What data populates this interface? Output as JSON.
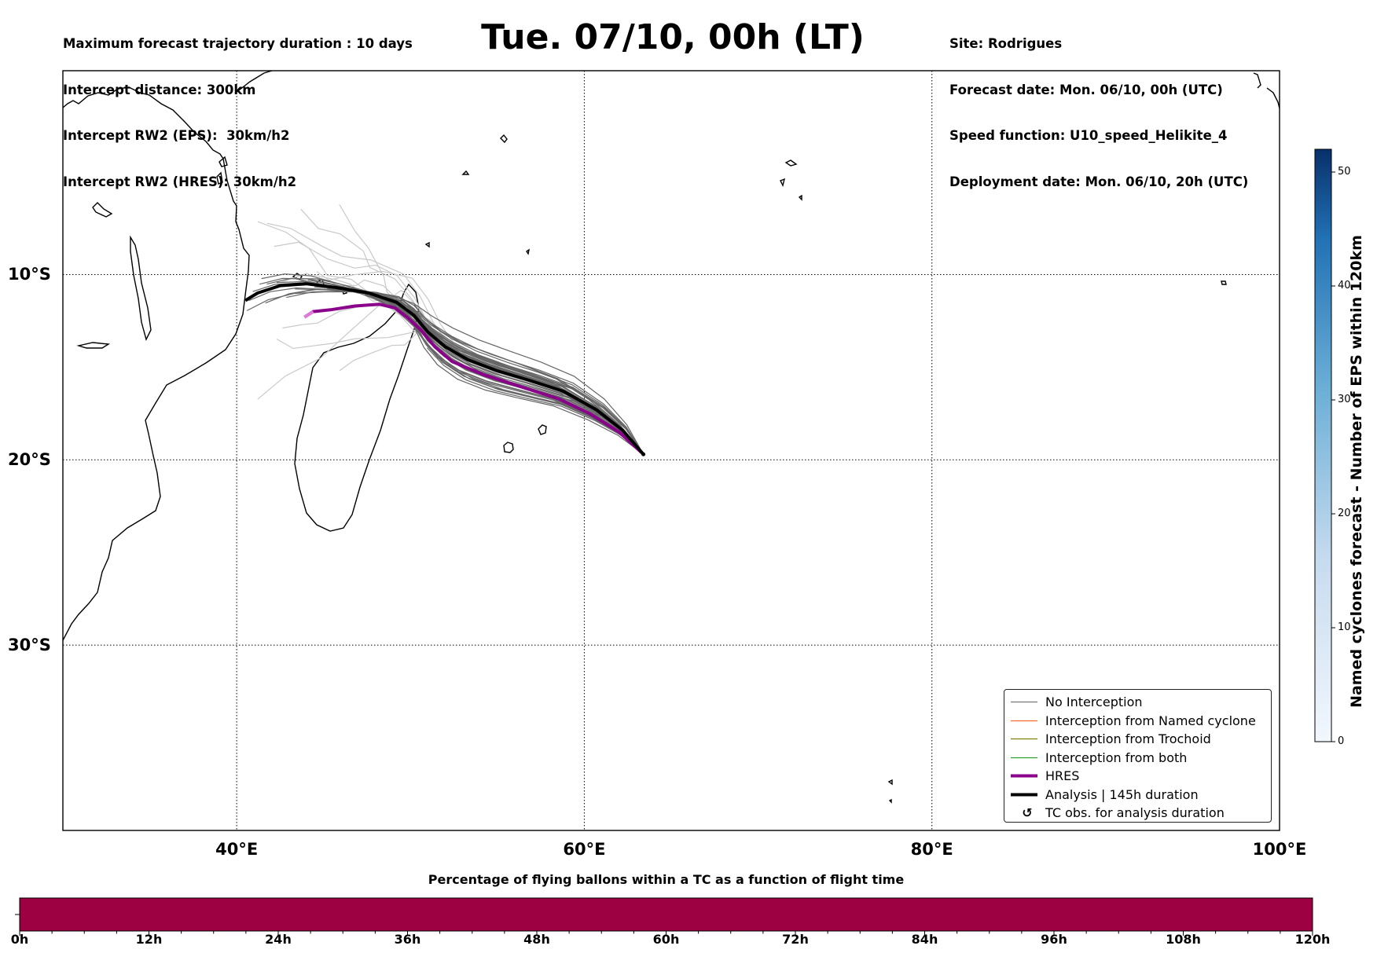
{
  "header": {
    "title": "Tue. 07/10, 00h (LT)",
    "left_lines": [
      "Maximum forecast trajectory duration : 10 days",
      "Intercept distance: 300km",
      "Intercept RW2 (EPS):  30km/h2",
      "Intercept RW2 (HRES): 30km/h2"
    ],
    "right_lines": [
      "Site: Rodrigues",
      "Forecast date: Mon. 06/10, 00h (UTC)",
      "Speed function: U10_speed_Helikite_4",
      "Deployment date: Mon. 06/10, 20h (UTC)"
    ]
  },
  "map": {
    "lon_range": [
      30,
      100
    ],
    "lat_range": [
      -40,
      1
    ],
    "lat_labels": [
      {
        "lat": -10,
        "text": "10°S"
      },
      {
        "lat": -20,
        "text": "20°S"
      },
      {
        "lat": -30,
        "text": "30°S"
      }
    ],
    "lon_labels": [
      {
        "lon": 40,
        "text": "40°E"
      },
      {
        "lon": 60,
        "text": "60°E"
      },
      {
        "lon": 80,
        "text": "80°E"
      },
      {
        "lon": 100,
        "text": "100°E"
      }
    ],
    "origin": {
      "lon": 63.4,
      "lat": -19.7
    },
    "colors": {
      "no_interception": "#666666",
      "named_cyclone": "#ff6a2a",
      "trochoid": "#808000",
      "both": "#2ca02c",
      "hres": "#8b008b",
      "analysis": "#000000"
    }
  },
  "legend": {
    "items": [
      {
        "label": "No Interception",
        "kind": "line",
        "color": "#777777",
        "width": 1.2
      },
      {
        "label": "Interception from Named cyclone",
        "kind": "line",
        "color": "#ff6a2a",
        "width": 1.2
      },
      {
        "label": "Interception from Trochoid",
        "kind": "line",
        "color": "#808000",
        "width": 1.2
      },
      {
        "label": "Interception from both",
        "kind": "line",
        "color": "#2ca02c",
        "width": 1.2
      },
      {
        "label": "HRES",
        "kind": "line",
        "color": "#8b008b",
        "width": 4
      },
      {
        "label": "Analysis | 145h duration",
        "kind": "line",
        "color": "#000000",
        "width": 4
      },
      {
        "label": "TC obs. for analysis duration",
        "kind": "marker",
        "color": "#000000",
        "symbol": "↺"
      }
    ]
  },
  "colorbar_right": {
    "title": "Named cyclones forecast - Number of EPS within 120km",
    "ticks": [
      0,
      10,
      20,
      30,
      40,
      50
    ],
    "max": 52,
    "color_low": "#f2f7fd",
    "color_high": "#08306b"
  },
  "colorbar_bottom": {
    "title": "Percentage of flying ballons within a TC as a function of flight time",
    "ticks": [
      "0h",
      "12h",
      "24h",
      "36h",
      "48h",
      "60h",
      "72h",
      "84h",
      "96h",
      "108h",
      "120h"
    ],
    "minor_per_major": 4,
    "fill_color": "#9e0142"
  }
}
